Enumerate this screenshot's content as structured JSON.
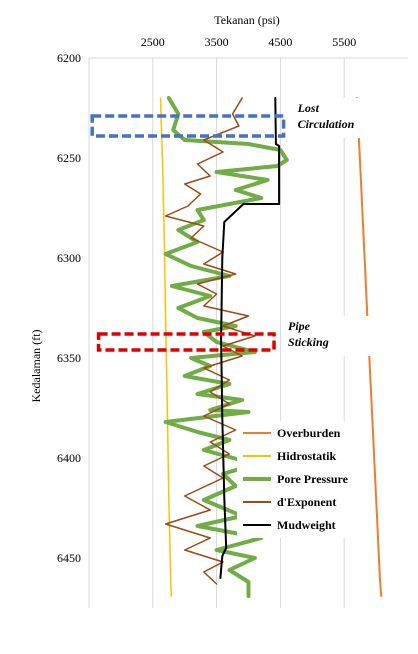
{
  "chart_data": {
    "type": "line",
    "orientation": "depth-down",
    "title": "",
    "xlabel": "Tekanan (psi)",
    "ylabel": "Kedalaman (ft)",
    "xlim": [
      1500,
      6500
    ],
    "ylim": [
      6200,
      6475
    ],
    "x_ticks": [
      2500,
      3500,
      4500,
      5500
    ],
    "x_tick_labels": [
      "2500",
      "3500",
      "4500",
      "5500"
    ],
    "y_ticks": [
      6200,
      6250,
      6300,
      6350,
      6400,
      6450
    ],
    "y_tick_labels": [
      "6200",
      "6250",
      "6300",
      "6350",
      "6400",
      "6450"
    ],
    "x_axis_position": "top",
    "grid": {
      "x": true,
      "y": false
    },
    "legend_position": "right-bottom",
    "series": [
      {
        "name": "Overburden",
        "color": "#ED7D31",
        "width": 2,
        "points": [
          [
            5700,
            6220
          ],
          [
            5760,
            6260
          ],
          [
            5820,
            6300
          ],
          [
            5880,
            6340
          ],
          [
            5940,
            6380
          ],
          [
            6000,
            6420
          ],
          [
            6060,
            6460
          ],
          [
            6080,
            6469
          ]
        ]
      },
      {
        "name": "Hidrostatik",
        "color": "#FFC000",
        "width": 1.5,
        "points": [
          [
            2620,
            6220
          ],
          [
            2650,
            6250
          ],
          [
            2680,
            6290
          ],
          [
            2700,
            6330
          ],
          [
            2730,
            6380
          ],
          [
            2750,
            6420
          ],
          [
            2780,
            6460
          ],
          [
            2790,
            6469
          ]
        ]
      },
      {
        "name": "Pore Pressure",
        "color": "#70AD47",
        "width": 4,
        "points": [
          [
            2750,
            6220
          ],
          [
            2900,
            6228
          ],
          [
            2820,
            6236
          ],
          [
            3000,
            6241
          ],
          [
            4000,
            6243
          ],
          [
            4500,
            6246
          ],
          [
            4600,
            6251
          ],
          [
            4450,
            6254
          ],
          [
            3500,
            6257
          ],
          [
            4300,
            6261
          ],
          [
            3800,
            6266
          ],
          [
            4200,
            6270
          ],
          [
            3200,
            6276
          ],
          [
            3300,
            6281
          ],
          [
            2900,
            6286
          ],
          [
            3200,
            6292
          ],
          [
            2700,
            6298
          ],
          [
            3100,
            6304
          ],
          [
            3700,
            6309
          ],
          [
            2800,
            6314
          ],
          [
            3400,
            6319
          ],
          [
            2900,
            6325
          ],
          [
            3200,
            6330
          ],
          [
            3800,
            6334
          ],
          [
            3300,
            6337
          ],
          [
            3500,
            6342
          ],
          [
            4100,
            6347
          ],
          [
            3100,
            6350
          ],
          [
            3400,
            6354
          ],
          [
            3000,
            6359
          ],
          [
            3700,
            6363
          ],
          [
            3200,
            6368
          ],
          [
            3900,
            6371
          ],
          [
            3400,
            6376
          ],
          [
            4000,
            6377
          ],
          [
            2700,
            6382
          ],
          [
            3200,
            6387
          ],
          [
            3700,
            6391
          ],
          [
            3300,
            6396
          ],
          [
            4100,
            6403
          ],
          [
            3600,
            6408
          ],
          [
            3800,
            6414
          ],
          [
            3300,
            6421
          ],
          [
            3900,
            6429
          ],
          [
            3200,
            6434
          ],
          [
            4200,
            6440
          ],
          [
            3500,
            6446
          ],
          [
            4100,
            6450
          ],
          [
            3700,
            6456
          ],
          [
            4000,
            6462
          ],
          [
            4000,
            6469
          ]
        ]
      },
      {
        "name": "d'Exponent",
        "color": "#9C4A16",
        "width": 1.5,
        "points": [
          [
            3900,
            6220
          ],
          [
            3750,
            6228
          ],
          [
            3850,
            6234
          ],
          [
            3300,
            6241
          ],
          [
            3600,
            6247
          ],
          [
            3200,
            6253
          ],
          [
            3400,
            6259
          ],
          [
            3000,
            6263
          ],
          [
            3250,
            6268
          ],
          [
            3050,
            6274
          ],
          [
            2700,
            6279
          ],
          [
            3300,
            6284
          ],
          [
            3100,
            6290
          ],
          [
            3600,
            6297
          ],
          [
            3300,
            6303
          ],
          [
            3800,
            6308
          ],
          [
            3200,
            6313
          ],
          [
            3500,
            6318
          ],
          [
            3300,
            6324
          ],
          [
            4000,
            6329
          ],
          [
            3600,
            6334
          ],
          [
            4100,
            6339
          ],
          [
            3600,
            6344
          ],
          [
            3900,
            6349
          ],
          [
            3300,
            6355
          ],
          [
            3700,
            6361
          ],
          [
            3400,
            6367
          ],
          [
            3700,
            6373
          ],
          [
            3300,
            6379
          ],
          [
            3800,
            6386
          ],
          [
            3400,
            6392
          ],
          [
            3700,
            6398
          ],
          [
            3300,
            6404
          ],
          [
            3600,
            6410
          ],
          [
            3000,
            6419
          ],
          [
            3400,
            6426
          ],
          [
            2700,
            6433
          ],
          [
            3400,
            6440
          ],
          [
            3000,
            6446
          ],
          [
            3600,
            6452
          ],
          [
            3300,
            6457
          ],
          [
            3500,
            6463
          ]
        ]
      },
      {
        "name": "Mudweight",
        "color": "#000000",
        "width": 2,
        "points": [
          [
            4420,
            6220
          ],
          [
            4430,
            6243
          ],
          [
            4480,
            6244
          ],
          [
            4480,
            6273
          ],
          [
            3920,
            6273
          ],
          [
            3620,
            6282
          ],
          [
            3590,
            6300
          ],
          [
            3570,
            6340
          ],
          [
            3590,
            6380
          ],
          [
            3620,
            6420
          ],
          [
            3650,
            6445
          ],
          [
            3590,
            6449
          ],
          [
            3560,
            6460
          ]
        ]
      }
    ],
    "annotations": [
      {
        "label_lines": [
          "Lost",
          "Circulation"
        ],
        "color": "#4472C4",
        "x_range": [
          1550,
          4550
        ],
        "depth_range": [
          6229,
          6239
        ]
      },
      {
        "label_lines": [
          "Pipe",
          "Sticking"
        ],
        "color": "#E00000",
        "x_range": [
          1650,
          4400
        ],
        "depth_range": [
          6338,
          6346
        ]
      }
    ]
  }
}
